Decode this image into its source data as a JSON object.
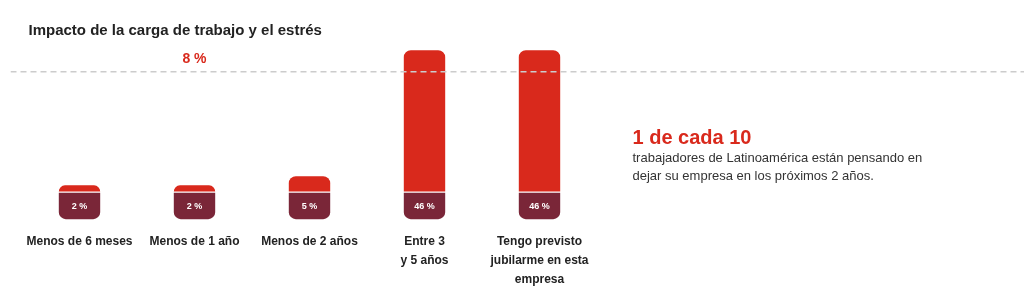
{
  "chart_data": {
    "type": "bar",
    "title": "Impacto de la carga de trabajo y el estrés",
    "categories": [
      "Menos de 6 meses",
      "Menos de 1 año",
      "Menos de 2 años",
      "Entre 3\ny 5 años",
      "Tengo previsto\njubilarme en esta\nempresa"
    ],
    "values": [
      2,
      2,
      5,
      46,
      46
    ],
    "color": "#d9291c",
    "value_labels": [
      "2 %",
      "2 %",
      "5 %",
      "46 %",
      "46 %"
    ],
    "tick_labels": false,
    "ref_lines": [
      {
        "axis": "y",
        "value": 39,
        "color": "#cccccc",
        "line_style": "dashed"
      }
    ],
    "annotations": [
      {
        "text": "8 %",
        "x": "Menos de 1 año",
        "y": 39
      },
      "1 de cada 10",
      "trabajadores de Latinoamérica están pensando en\ndejar su empresa en los próximos 2 años."
    ],
    "grid": false,
    "legend": false
  }
}
